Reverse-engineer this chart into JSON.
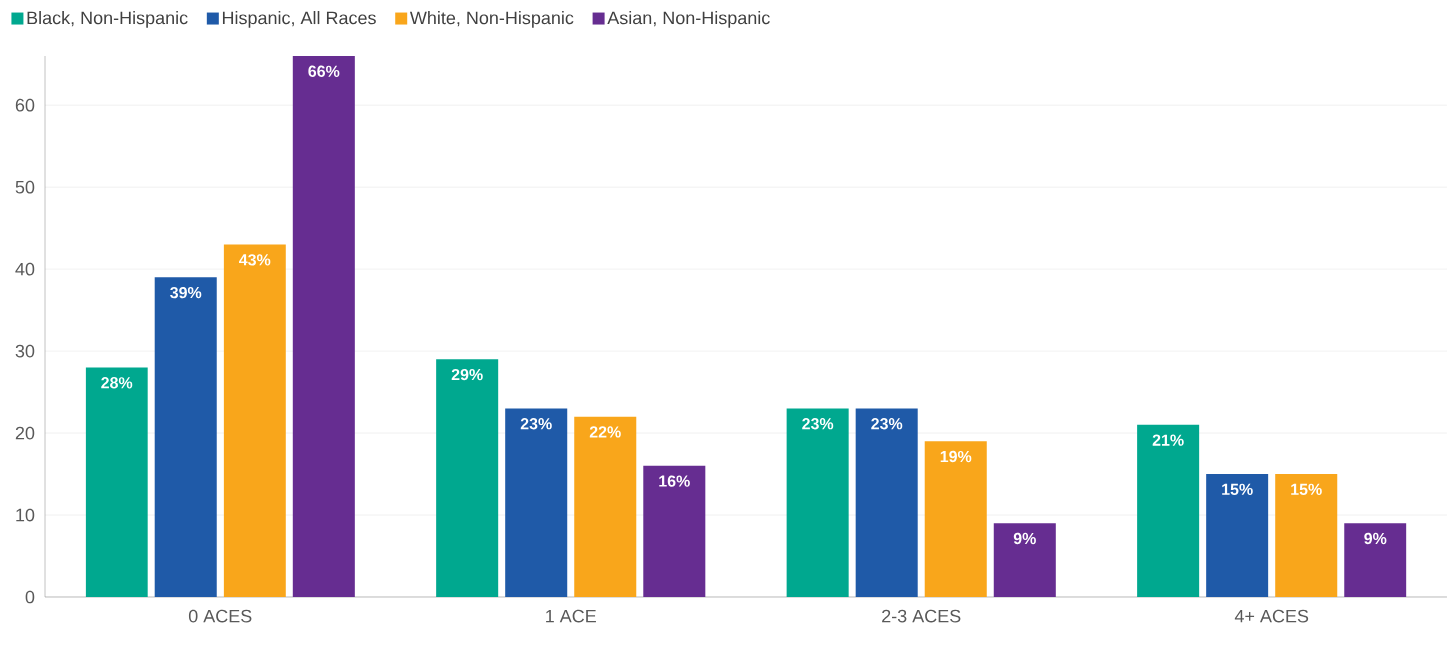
{
  "chart_data": {
    "type": "bar",
    "categories": [
      "0 ACES",
      "1 ACE",
      "2-3 ACES",
      "4+ ACES"
    ],
    "series": [
      {
        "name": "Black, Non-Hispanic",
        "color": "#00a88f",
        "values": [
          28,
          29,
          23,
          21
        ],
        "value_labels": [
          "28%",
          "29%",
          "23%",
          "21%"
        ]
      },
      {
        "name": "Hispanic, All Races",
        "color": "#1f5aa8",
        "values": [
          39,
          23,
          23,
          15
        ],
        "value_labels": [
          "39%",
          "23%",
          "23%",
          "15%"
        ]
      },
      {
        "name": "White, Non-Hispanic",
        "color": "#f9a61b",
        "values": [
          43,
          22,
          19,
          15
        ],
        "value_labels": [
          "43%",
          "22%",
          "19%",
          "15%"
        ]
      },
      {
        "name": "Asian, Non-Hispanic",
        "color": "#662d91",
        "values": [
          66,
          16,
          9,
          9
        ],
        "value_labels": [
          "66%",
          "16%",
          "9%",
          "9%"
        ]
      }
    ],
    "ylim": [
      0,
      66
    ],
    "yticks": [
      0,
      10,
      20,
      30,
      40,
      50,
      60
    ],
    "grid": "y",
    "legend": "top left"
  }
}
